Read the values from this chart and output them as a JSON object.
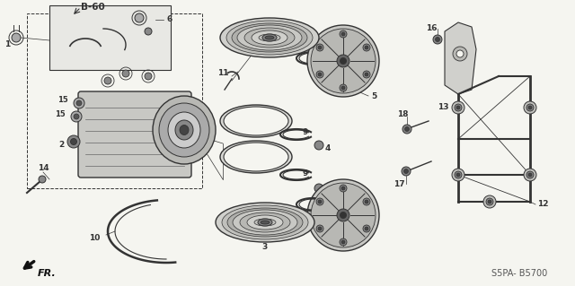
{
  "background_color": "#f5f5f0",
  "diagram_color": "#333333",
  "fig_width": 6.4,
  "fig_height": 3.19,
  "watermark": "S5PA- B5700",
  "ref_code": "B-60",
  "front_label": "FR."
}
